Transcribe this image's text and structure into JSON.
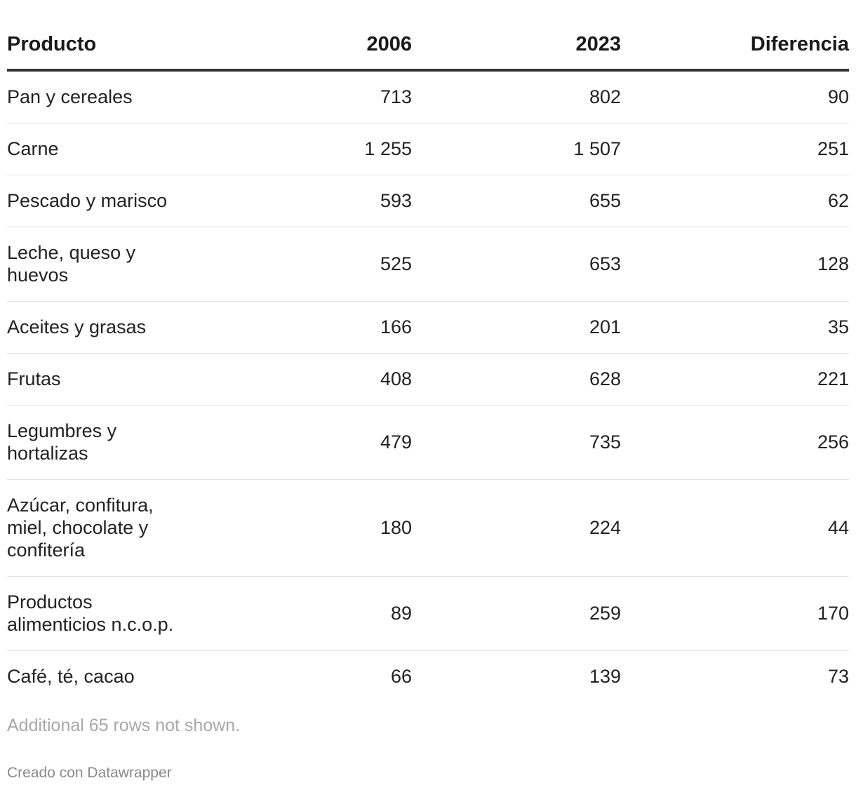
{
  "chart_data": {
    "type": "table",
    "columns": [
      "Producto",
      "2006",
      "2023",
      "Diferencia"
    ],
    "rows": [
      {
        "producto": "Pan y cereales",
        "y2006": "713",
        "y2023": "802",
        "diferencia": "90"
      },
      {
        "producto": "Carne",
        "y2006": "1 255",
        "y2023": "1 507",
        "diferencia": "251"
      },
      {
        "producto": "Pescado y marisco",
        "y2006": "593",
        "y2023": "655",
        "diferencia": "62"
      },
      {
        "producto": "Leche, queso y huevos",
        "y2006": "525",
        "y2023": "653",
        "diferencia": "128"
      },
      {
        "producto": "Aceites y grasas",
        "y2006": "166",
        "y2023": "201",
        "diferencia": "35"
      },
      {
        "producto": "Frutas",
        "y2006": "408",
        "y2023": "628",
        "diferencia": "221"
      },
      {
        "producto": "Legumbres y hortalizas",
        "y2006": "479",
        "y2023": "735",
        "diferencia": "256"
      },
      {
        "producto": "Azúcar, confitura, miel, chocolate y confitería",
        "y2006": "180",
        "y2023": "224",
        "diferencia": "44"
      },
      {
        "producto": "Productos alimenticios n.c.o.p.",
        "y2006": "89",
        "y2023": "259",
        "diferencia": "170"
      },
      {
        "producto": "Café, té, cacao",
        "y2006": "66",
        "y2023": "139",
        "diferencia": "73"
      }
    ],
    "notes": "Additional 65 rows not shown."
  },
  "footer": {
    "credit": "Creado con Datawrapper"
  }
}
